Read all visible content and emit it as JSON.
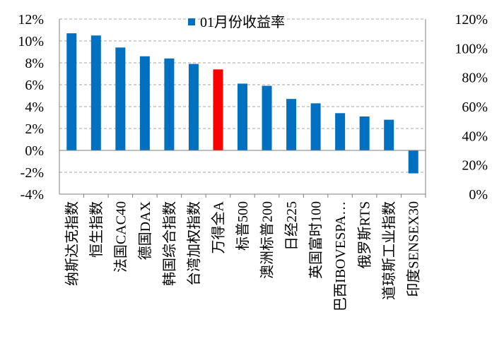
{
  "chart_data": {
    "type": "bar",
    "categories": [
      "纳斯达克指数",
      "恒生指数",
      "法国CAC40",
      "德国DAX",
      "韩国综合指数",
      "台湾加权指数",
      "万得全A",
      "标普500",
      "澳洲标普200",
      "日经225",
      "英国富时100",
      "巴西IBOVESPA…",
      "俄罗斯RTS",
      "道琼斯工业指数",
      "印度SENSEX30"
    ],
    "series": [
      {
        "name": "01月份收益率",
        "values": [
          10.7,
          10.5,
          9.4,
          8.6,
          8.4,
          7.9,
          7.4,
          6.1,
          5.9,
          4.7,
          4.3,
          3.4,
          3.1,
          2.8,
          -2.1
        ]
      }
    ],
    "highlight_category": "万得全A",
    "colors": {
      "bar": "#0070C0",
      "highlight": "#FF0000",
      "grid": "#A6A6A6",
      "axis": "#7F7F7F"
    },
    "ylim": [
      -4,
      12
    ],
    "y_ticks": [
      "-4%",
      "-2%",
      "0%",
      "2%",
      "4%",
      "6%",
      "8%",
      "10%",
      "12%"
    ],
    "y2lim": [
      0,
      120
    ],
    "y2_ticks": [
      "0%",
      "20%",
      "40%",
      "60%",
      "80%",
      "100%",
      "120%"
    ],
    "grid": true,
    "legend": "top-center",
    "title": "",
    "xlabel": "",
    "ylabel": ""
  }
}
